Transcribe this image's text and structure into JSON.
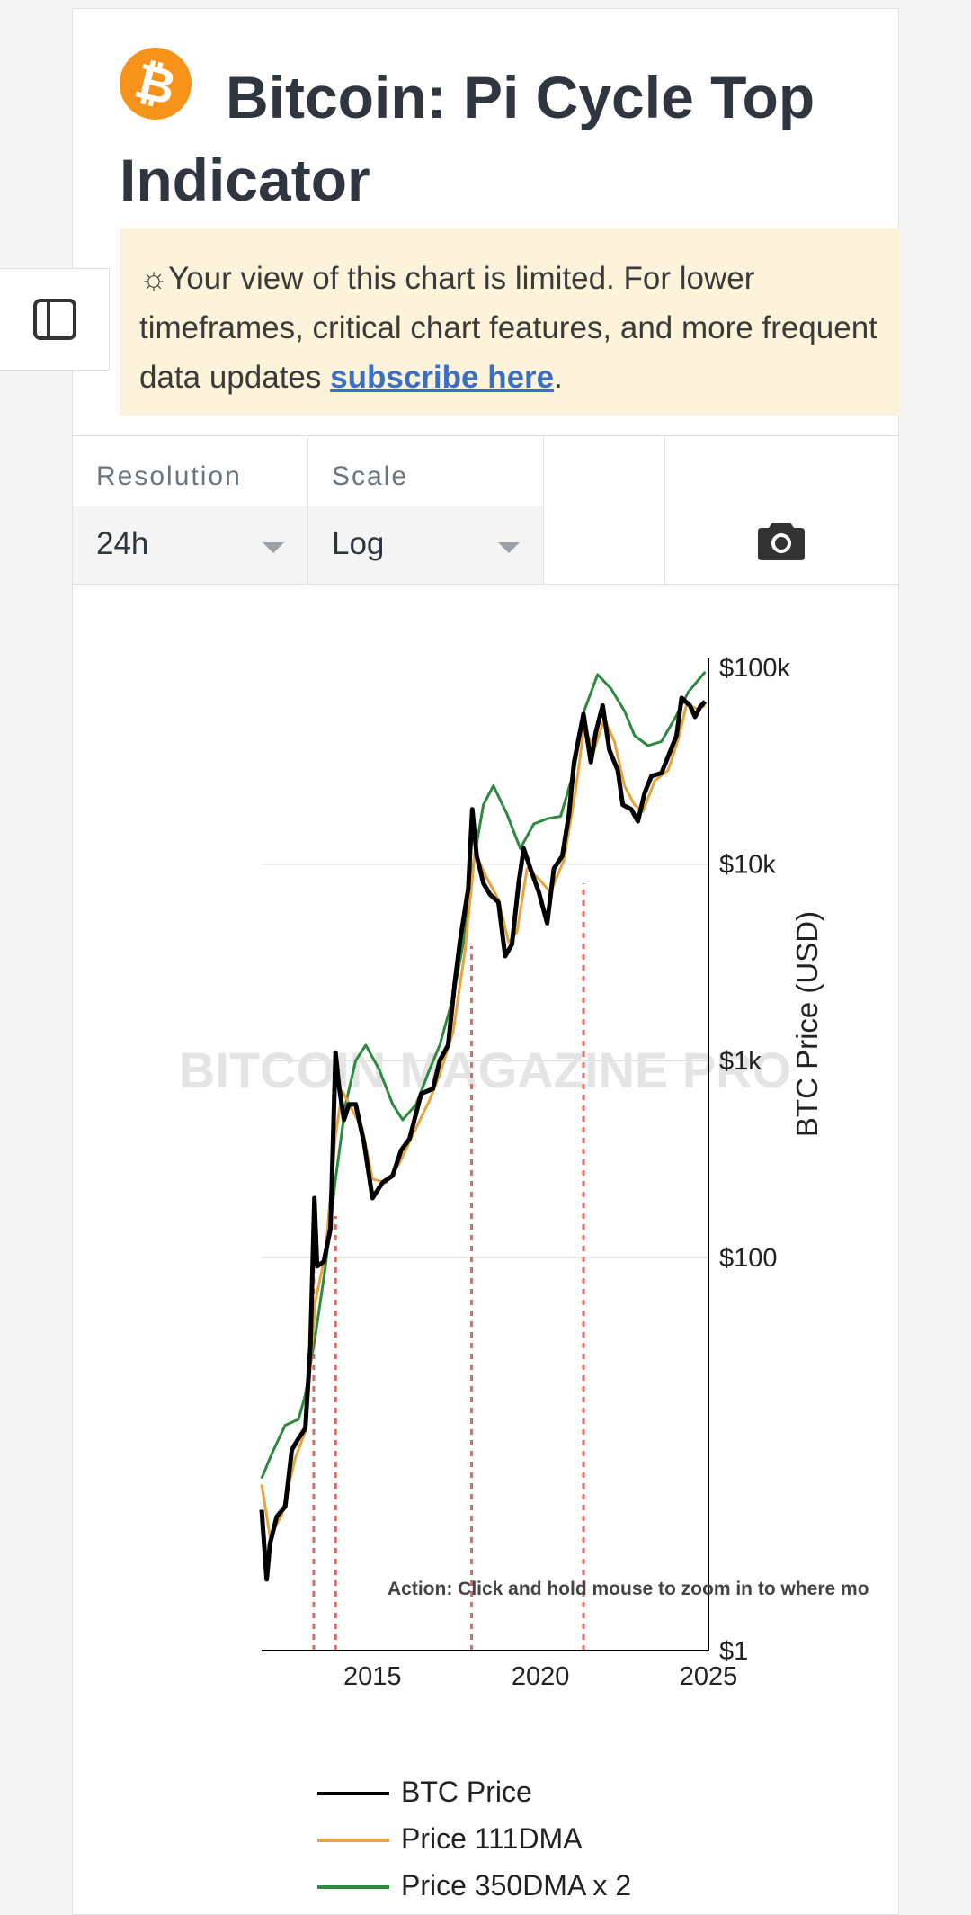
{
  "header": {
    "title": "Bitcoin: Pi Cycle Top Indicator",
    "logo_glyph": "₿",
    "logo_color": "#f7931a"
  },
  "notice": {
    "icon": "☼",
    "text": "Your view of this chart is limited. For lower timeframes, critical chart features, and more frequent data updates ",
    "link_text": "subscribe here",
    "suffix": ".",
    "background": "#fcf3da",
    "link_color": "#3a6fc4"
  },
  "sidebar": {
    "toggle_icon": "sidebar-panel-icon"
  },
  "controls": {
    "resolution": {
      "label": "Resolution",
      "value": "24h"
    },
    "scale": {
      "label": "Scale",
      "value": "Log"
    },
    "screenshot_icon": "camera-icon"
  },
  "chart_data": {
    "type": "line",
    "title": "",
    "ylabel": "BTC Price (USD)",
    "yscale": "log",
    "ylim": [
      1,
      100000
    ],
    "xlim": [
      2011.7,
      2025.0
    ],
    "x_ticks": [
      2015,
      2020,
      2025
    ],
    "x_tick_labels": [
      "2015",
      "2020",
      "2025"
    ],
    "y_ticks": [
      1,
      100,
      1000,
      10000,
      100000
    ],
    "y_tick_labels": [
      "$1",
      "$100",
      "$1k",
      "$10k",
      "$100k"
    ],
    "grid": true,
    "watermark": "BITCOIN MAGAZINE PRO",
    "annotation": "Action: Click and hold mouse to zoom in to where mo",
    "pi_cycle_top_signals": [
      2013.25,
      2013.9,
      2017.95,
      2021.28
    ],
    "legend_position": "bottom",
    "series": [
      {
        "name": "BTC Price",
        "color": "#000000",
        "points": [
          [
            2011.7,
            5.2
          ],
          [
            2011.85,
            2.3
          ],
          [
            2011.95,
            3.5
          ],
          [
            2012.15,
            4.8
          ],
          [
            2012.4,
            5.4
          ],
          [
            2012.6,
            10.5
          ],
          [
            2012.8,
            12
          ],
          [
            2013.0,
            13.5
          ],
          [
            2013.15,
            35
          ],
          [
            2013.27,
            200
          ],
          [
            2013.35,
            90
          ],
          [
            2013.55,
            95
          ],
          [
            2013.75,
            140
          ],
          [
            2013.9,
            1100
          ],
          [
            2014.0,
            750
          ],
          [
            2014.15,
            500
          ],
          [
            2014.3,
            600
          ],
          [
            2014.5,
            600
          ],
          [
            2014.75,
            380
          ],
          [
            2015.0,
            200
          ],
          [
            2015.3,
            240
          ],
          [
            2015.6,
            260
          ],
          [
            2015.85,
            350
          ],
          [
            2016.1,
            400
          ],
          [
            2016.45,
            680
          ],
          [
            2016.8,
            720
          ],
          [
            2017.0,
            1000
          ],
          [
            2017.25,
            1200
          ],
          [
            2017.45,
            2500
          ],
          [
            2017.6,
            4000
          ],
          [
            2017.85,
            7500
          ],
          [
            2017.97,
            19000
          ],
          [
            2018.1,
            11000
          ],
          [
            2018.3,
            8000
          ],
          [
            2018.5,
            7000
          ],
          [
            2018.75,
            6400
          ],
          [
            2018.95,
            3400
          ],
          [
            2019.15,
            3900
          ],
          [
            2019.35,
            8000
          ],
          [
            2019.5,
            12000
          ],
          [
            2019.7,
            9500
          ],
          [
            2019.95,
            7200
          ],
          [
            2020.2,
            5000
          ],
          [
            2020.4,
            9500
          ],
          [
            2020.65,
            11000
          ],
          [
            2020.85,
            18000
          ],
          [
            2021.0,
            33000
          ],
          [
            2021.28,
            58000
          ],
          [
            2021.5,
            33000
          ],
          [
            2021.65,
            47000
          ],
          [
            2021.85,
            64000
          ],
          [
            2022.05,
            38000
          ],
          [
            2022.3,
            30000
          ],
          [
            2022.45,
            20000
          ],
          [
            2022.7,
            19000
          ],
          [
            2022.9,
            16500
          ],
          [
            2023.1,
            23000
          ],
          [
            2023.3,
            28000
          ],
          [
            2023.6,
            29000
          ],
          [
            2023.85,
            37000
          ],
          [
            2024.05,
            45000
          ],
          [
            2024.2,
            70000
          ],
          [
            2024.45,
            64000
          ],
          [
            2024.6,
            56000
          ],
          [
            2024.75,
            63000
          ],
          [
            2024.9,
            67000
          ]
        ]
      },
      {
        "name": "Price 111DMA",
        "color": "#e8a33d",
        "points": [
          [
            2011.7,
            7
          ],
          [
            2011.95,
            3.8
          ],
          [
            2012.3,
            4.9
          ],
          [
            2012.7,
            9.5
          ],
          [
            2013.0,
            13
          ],
          [
            2013.3,
            60
          ],
          [
            2013.6,
            105
          ],
          [
            2013.9,
            420
          ],
          [
            2014.1,
            700
          ],
          [
            2014.4,
            560
          ],
          [
            2014.7,
            450
          ],
          [
            2015.0,
            250
          ],
          [
            2015.4,
            240
          ],
          [
            2015.8,
            300
          ],
          [
            2016.2,
            420
          ],
          [
            2016.7,
            630
          ],
          [
            2017.0,
            850
          ],
          [
            2017.4,
            1400
          ],
          [
            2017.75,
            3600
          ],
          [
            2018.05,
            11500
          ],
          [
            2018.4,
            8500
          ],
          [
            2018.75,
            6600
          ],
          [
            2019.05,
            4000
          ],
          [
            2019.3,
            4500
          ],
          [
            2019.6,
            9500
          ],
          [
            2019.95,
            8400
          ],
          [
            2020.3,
            7200
          ],
          [
            2020.7,
            10500
          ],
          [
            2021.05,
            24000
          ],
          [
            2021.3,
            50000
          ],
          [
            2021.6,
            38000
          ],
          [
            2021.9,
            55000
          ],
          [
            2022.2,
            42000
          ],
          [
            2022.5,
            25000
          ],
          [
            2022.8,
            20000
          ],
          [
            2023.05,
            18500
          ],
          [
            2023.4,
            26500
          ],
          [
            2023.8,
            30000
          ],
          [
            2024.1,
            43000
          ],
          [
            2024.35,
            65000
          ],
          [
            2024.7,
            61000
          ],
          [
            2024.9,
            64000
          ]
        ]
      },
      {
        "name": "Price 350DMA x 2",
        "color": "#2b8a3e",
        "points": [
          [
            2011.7,
            7.5
          ],
          [
            2012.0,
            10
          ],
          [
            2012.4,
            14
          ],
          [
            2012.8,
            15
          ],
          [
            2013.0,
            20
          ],
          [
            2013.3,
            40
          ],
          [
            2013.6,
            90
          ],
          [
            2013.9,
            250
          ],
          [
            2014.2,
            600
          ],
          [
            2014.5,
            1000
          ],
          [
            2014.8,
            1200
          ],
          [
            2015.2,
            900
          ],
          [
            2015.6,
            600
          ],
          [
            2015.9,
            500
          ],
          [
            2016.3,
            600
          ],
          [
            2016.7,
            900
          ],
          [
            2017.0,
            1200
          ],
          [
            2017.4,
            2100
          ],
          [
            2017.75,
            4400
          ],
          [
            2018.0,
            10000
          ],
          [
            2018.3,
            20000
          ],
          [
            2018.6,
            25000
          ],
          [
            2019.0,
            18000
          ],
          [
            2019.4,
            12000
          ],
          [
            2019.8,
            16000
          ],
          [
            2020.2,
            17000
          ],
          [
            2020.6,
            17500
          ],
          [
            2021.0,
            30000
          ],
          [
            2021.3,
            60000
          ],
          [
            2021.7,
            92000
          ],
          [
            2022.1,
            78000
          ],
          [
            2022.5,
            60000
          ],
          [
            2022.8,
            45000
          ],
          [
            2023.2,
            40000
          ],
          [
            2023.6,
            42000
          ],
          [
            2024.0,
            55000
          ],
          [
            2024.4,
            75000
          ],
          [
            2024.9,
            95000
          ]
        ]
      }
    ]
  }
}
